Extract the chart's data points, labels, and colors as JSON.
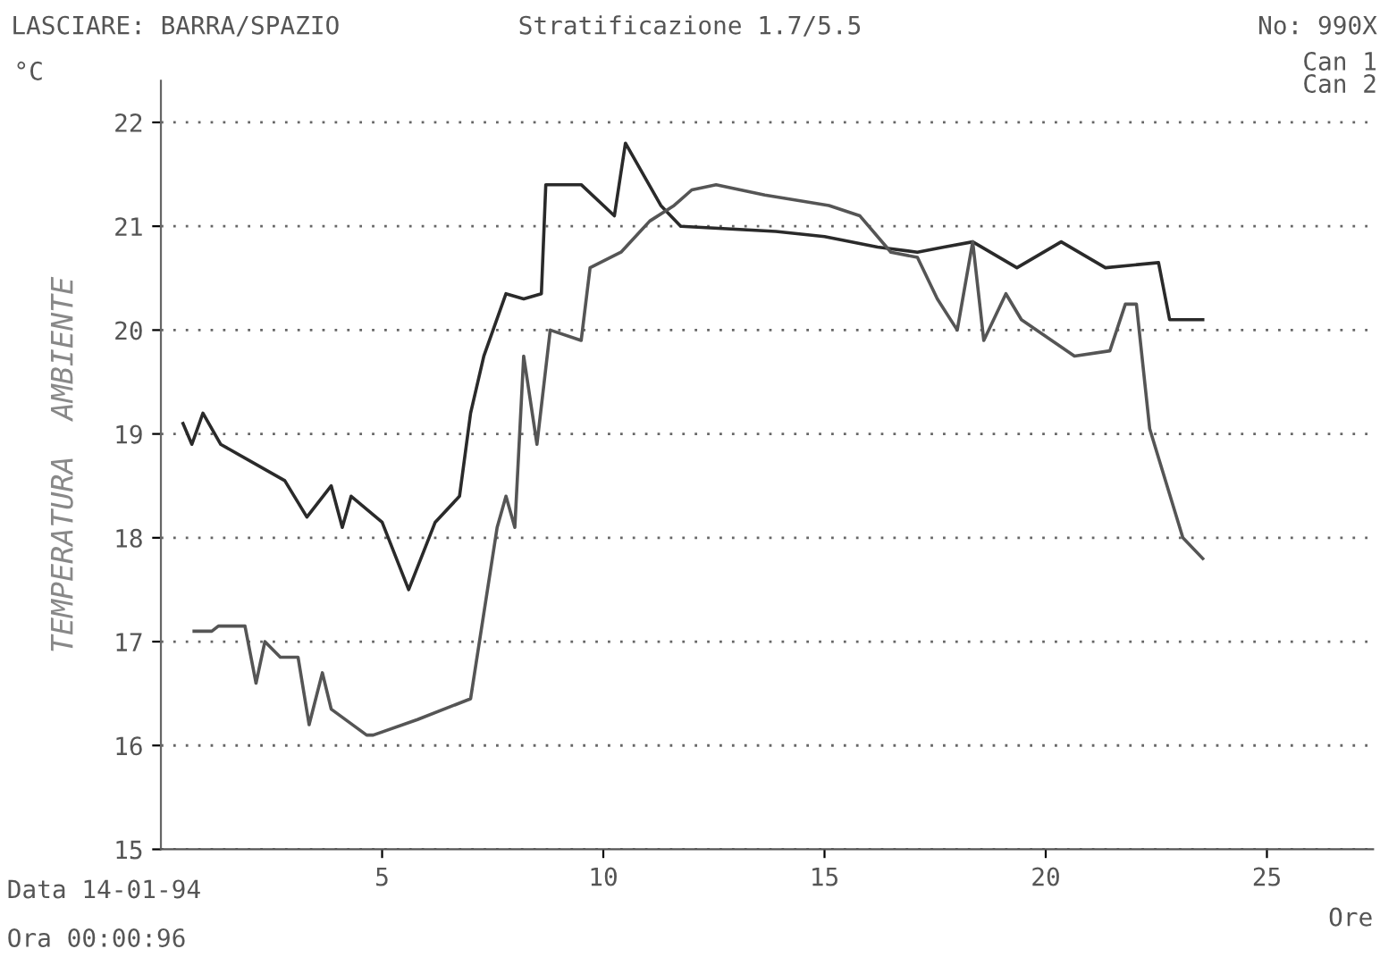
{
  "chart_data": {
    "type": "line",
    "title": "Stratificazione 1.7/5.5",
    "xlabel": "Ore",
    "ylabel": "TEMPERATURA  AMBIENTE",
    "annotations": [
      "LASCIARE: BARRA/SPAZIO",
      "No: 990X",
      "Can 1",
      "Can 2",
      "°C",
      "Data 14-01-94",
      "Ora 00:00:96"
    ],
    "series": [
      {
        "color": "#2a2a2a",
        "x": [
          0.5,
          0.7,
          0.95,
          1.35,
          2.8,
          3.3,
          3.85,
          4.1,
          4.3,
          5.0,
          5.6,
          6.2,
          6.75,
          7.0,
          7.3,
          7.8,
          8.2,
          8.6,
          8.7,
          9.5,
          10.25,
          10.5,
          11.3,
          11.75,
          13.9,
          15.0,
          16.2,
          17.1,
          17.7,
          18.35,
          19.35,
          20.35,
          21.35,
          22.55,
          22.8,
          23.55
        ],
        "values": [
          19.1,
          18.9,
          19.2,
          18.9,
          18.55,
          18.2,
          18.5,
          18.1,
          18.4,
          18.15,
          17.5,
          18.15,
          18.4,
          19.2,
          19.75,
          20.35,
          20.3,
          20.35,
          21.4,
          21.4,
          21.1,
          21.8,
          21.2,
          21.0,
          20.95,
          20.9,
          20.8,
          20.75,
          20.8,
          20.85,
          20.6,
          20.85,
          20.6,
          20.65,
          20.1,
          20.1
        ]
      },
      {
        "color": "#555555",
        "x": [
          0.75,
          1.15,
          1.3,
          1.9,
          2.15,
          2.35,
          2.7,
          3.1,
          3.35,
          3.65,
          3.85,
          4.65,
          4.8,
          5.8,
          7.0,
          7.6,
          7.8,
          8.0,
          8.2,
          8.5,
          8.8,
          9.5,
          9.7,
          10.4,
          11.05,
          11.6,
          12.0,
          12.55,
          13.65,
          15.1,
          15.8,
          16.5,
          17.1,
          17.55,
          18.0,
          18.35,
          18.6,
          19.1,
          19.45,
          20.65,
          21.45,
          21.8,
          22.05,
          22.35,
          23.1,
          23.55
        ],
        "values": [
          17.1,
          17.1,
          17.15,
          17.15,
          16.6,
          17.0,
          16.85,
          16.85,
          16.2,
          16.7,
          16.35,
          16.1,
          16.1,
          16.25,
          16.45,
          18.1,
          18.4,
          18.1,
          19.75,
          18.9,
          20.0,
          19.9,
          20.6,
          20.75,
          21.05,
          21.2,
          21.35,
          21.4,
          21.3,
          21.2,
          21.1,
          20.75,
          20.7,
          20.3,
          20.0,
          20.85,
          19.9,
          20.35,
          20.1,
          19.75,
          19.8,
          20.25,
          20.25,
          19.05,
          18.0,
          17.8
        ]
      }
    ],
    "xlim": [
      0,
      27.4
    ],
    "xticks": [
      5,
      10,
      15,
      20,
      25
    ],
    "ylim": [
      15,
      22.4
    ],
    "yticks": [
      15,
      16,
      17,
      18,
      19,
      20,
      21,
      22
    ],
    "grid": "y",
    "marker": "none",
    "line_style": "solid"
  }
}
